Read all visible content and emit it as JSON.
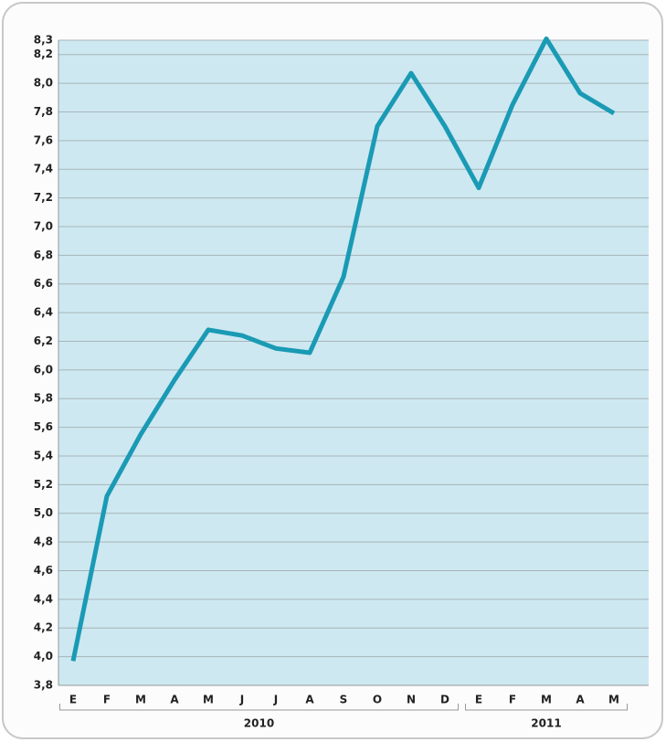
{
  "chart_data": {
    "type": "line",
    "category_groups": [
      {
        "name": "2010",
        "categories": [
          "E",
          "F",
          "M",
          "A",
          "M",
          "J",
          "J",
          "A",
          "S",
          "O",
          "N",
          "D"
        ]
      },
      {
        "name": "2011",
        "categories": [
          "E",
          "F",
          "M",
          "A",
          "M"
        ]
      }
    ],
    "series": [
      {
        "color": "#1a9ab4",
        "values": [
          3.97,
          5.12,
          5.55,
          5.93,
          6.28,
          6.24,
          6.15,
          6.12,
          6.65,
          7.7,
          8.07,
          7.7,
          7.27,
          7.85,
          8.31,
          7.93,
          7.79
        ]
      }
    ],
    "ylim": [
      3.8,
      8.3
    ],
    "yticks": [
      {
        "value": 3.8,
        "label": "3,8"
      },
      {
        "value": 4.0,
        "label": "4,0"
      },
      {
        "value": 4.2,
        "label": "4,2"
      },
      {
        "value": 4.4,
        "label": "4,4"
      },
      {
        "value": 4.6,
        "label": "4,6"
      },
      {
        "value": 4.8,
        "label": "4,8"
      },
      {
        "value": 5.0,
        "label": "5,0"
      },
      {
        "value": 5.2,
        "label": "5,2"
      },
      {
        "value": 5.4,
        "label": "5,4"
      },
      {
        "value": 5.6,
        "label": "5,6"
      },
      {
        "value": 5.8,
        "label": "5,8"
      },
      {
        "value": 6.0,
        "label": "6,0"
      },
      {
        "value": 6.2,
        "label": "6,2"
      },
      {
        "value": 6.4,
        "label": "6,4"
      },
      {
        "value": 6.6,
        "label": "6,6"
      },
      {
        "value": 6.8,
        "label": "6,8"
      },
      {
        "value": 7.0,
        "label": "7,0"
      },
      {
        "value": 7.2,
        "label": "7,2"
      },
      {
        "value": 7.4,
        "label": "7,4"
      },
      {
        "value": 7.6,
        "label": "7,6"
      },
      {
        "value": 7.8,
        "label": "7,8"
      },
      {
        "value": 8.0,
        "label": "8,0"
      },
      {
        "value": 8.2,
        "label": "8,2"
      },
      {
        "value": 8.3,
        "label": "8,3"
      }
    ],
    "grid": true
  }
}
